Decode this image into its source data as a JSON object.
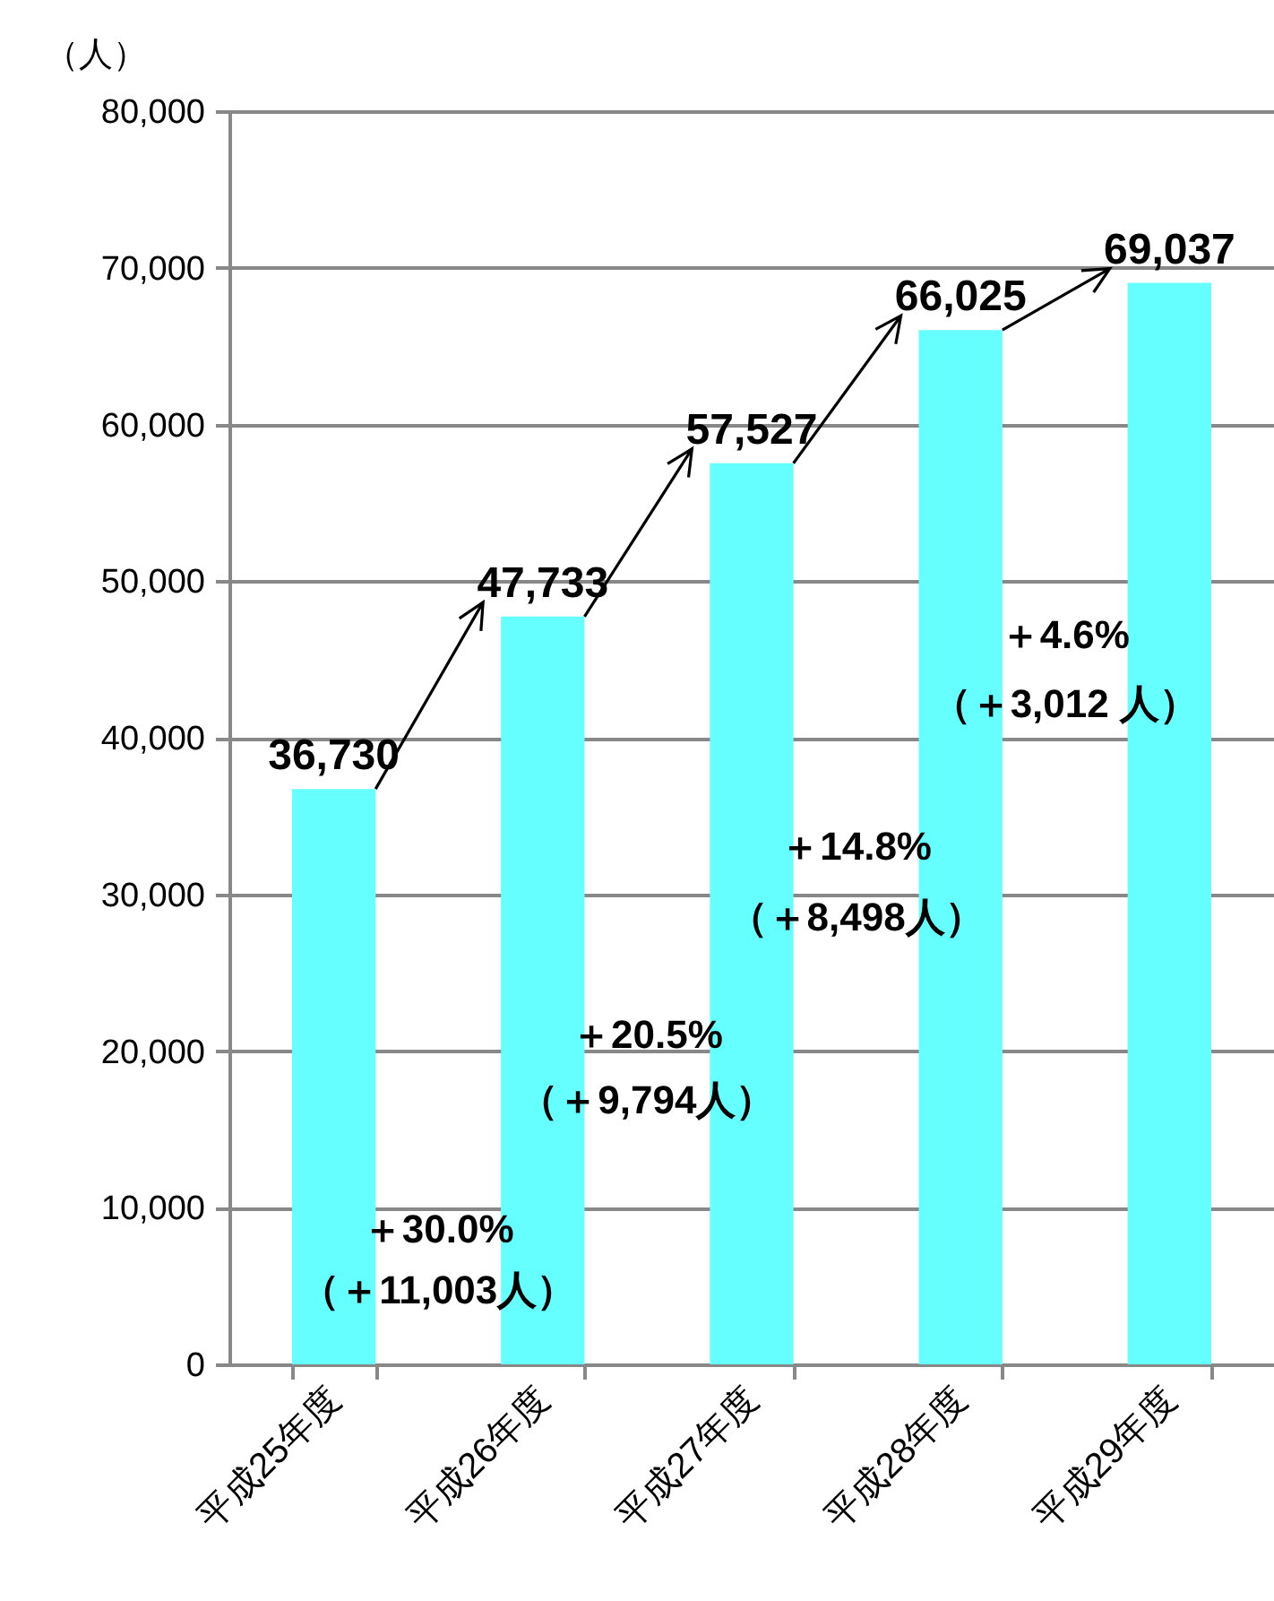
{
  "chart_data": {
    "type": "bar",
    "ylabel": "（人）",
    "categories": [
      "平成25年度",
      "平成26年度",
      "平成27年度",
      "平成28年度",
      "平成29年度"
    ],
    "values": [
      36730,
      47733,
      57527,
      66025,
      69037
    ],
    "color": "#66ffff",
    "ylim": [
      0,
      80000
    ],
    "yticks": [
      {
        "value": 0,
        "label": "0"
      },
      {
        "value": 10000,
        "label": "10,000"
      },
      {
        "value": 20000,
        "label": "20,000"
      },
      {
        "value": 30000,
        "label": "30,000"
      },
      {
        "value": 40000,
        "label": "40,000"
      },
      {
        "value": 50000,
        "label": "50,000"
      },
      {
        "value": 60000,
        "label": "60,000"
      },
      {
        "value": 70000,
        "label": "70,000"
      },
      {
        "value": 80000,
        "label": "80,000"
      }
    ],
    "grid": "y",
    "value_labels": [
      "36,730",
      "47,733",
      "57,527",
      "66,025",
      "69,037"
    ],
    "annotations": [
      {
        "text": "＋30.0%",
        "x": "平成25年度",
        "y": 8600
      },
      {
        "text": "（＋11,003人）",
        "x": "平成25年度",
        "y": 4700
      },
      {
        "text": "＋20.5%",
        "x": "平成26年度",
        "y": 21000
      },
      {
        "text": "（＋9,794人）",
        "x": "平成26年度",
        "y": 16800
      },
      {
        "text": "＋14.8%",
        "x": "平成27年度",
        "y": 33000
      },
      {
        "text": "（＋8,498人）",
        "x": "平成27年度",
        "y": 28500
      },
      {
        "text": "＋4.6%",
        "x": "平成28年度",
        "y": 46500
      },
      {
        "text": "（＋3,012 人）",
        "x": "平成28年度",
        "y": 42100
      }
    ]
  }
}
